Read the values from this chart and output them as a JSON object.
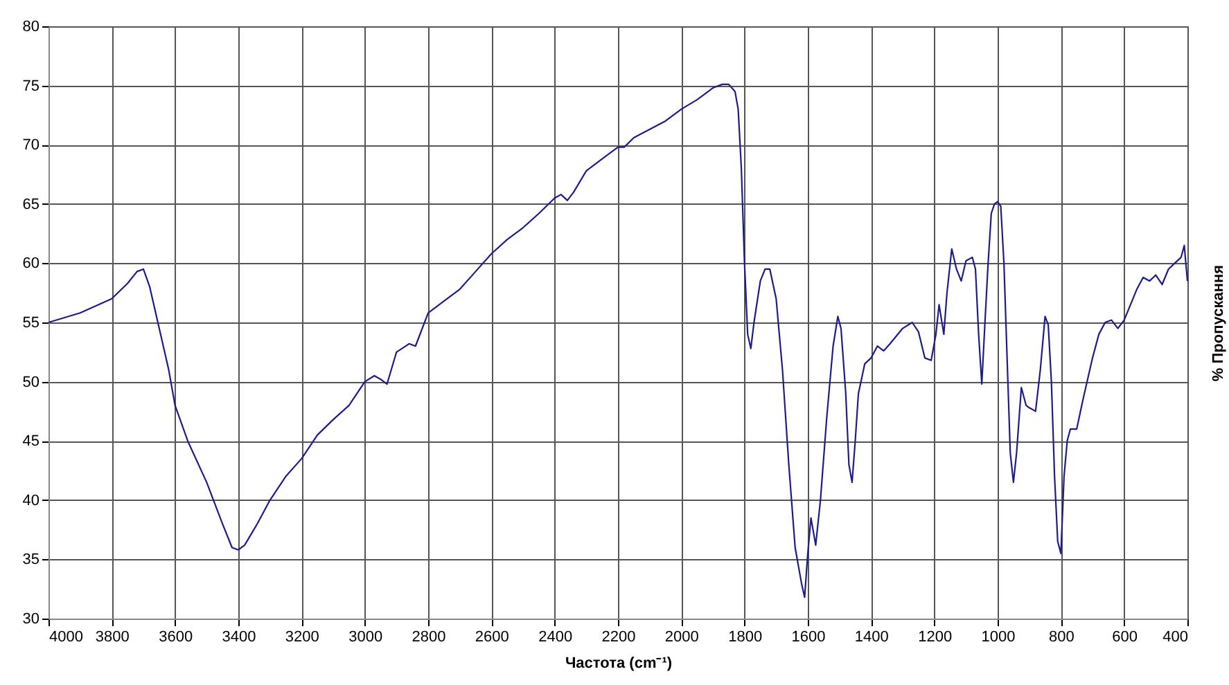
{
  "chart_data": {
    "type": "line",
    "xlabel": "Частота (cm⁻¹)",
    "ylabel": "% Пропускання",
    "x": [
      4000,
      3900,
      3800,
      3750,
      3720,
      3700,
      3680,
      3650,
      3620,
      3600,
      3560,
      3500,
      3450,
      3420,
      3400,
      3380,
      3340,
      3300,
      3250,
      3200,
      3150,
      3100,
      3050,
      3000,
      2970,
      2950,
      2930,
      2900,
      2860,
      2840,
      2800,
      2750,
      2700,
      2650,
      2600,
      2550,
      2500,
      2450,
      2400,
      2380,
      2360,
      2340,
      2300,
      2250,
      2200,
      2180,
      2150,
      2100,
      2050,
      2000,
      1950,
      1900,
      1870,
      1850,
      1830,
      1820,
      1810,
      1800,
      1790,
      1780,
      1770,
      1750,
      1735,
      1720,
      1700,
      1680,
      1660,
      1640,
      1620,
      1610,
      1600,
      1590,
      1575,
      1560,
      1540,
      1520,
      1505,
      1495,
      1480,
      1470,
      1460,
      1450,
      1440,
      1420,
      1400,
      1380,
      1360,
      1340,
      1300,
      1270,
      1250,
      1230,
      1210,
      1195,
      1185,
      1170,
      1160,
      1145,
      1130,
      1115,
      1100,
      1080,
      1070,
      1060,
      1050,
      1040,
      1030,
      1020,
      1010,
      1000,
      990,
      980,
      970,
      960,
      950,
      940,
      925,
      910,
      900,
      880,
      865,
      850,
      840,
      830,
      820,
      810,
      800,
      790,
      780,
      770,
      750,
      730,
      700,
      680,
      660,
      640,
      620,
      600,
      580,
      560,
      540,
      520,
      500,
      480,
      460,
      440,
      420,
      410,
      405,
      400
    ],
    "series": [
      {
        "color": "#1c1c8c",
        "values": [
          55.0,
          55.8,
          57.0,
          58.3,
          59.3,
          59.5,
          58.0,
          54.5,
          51,
          48,
          45,
          41.5,
          38,
          36,
          35.8,
          36.2,
          38,
          40,
          42,
          43.5,
          45.5,
          46.8,
          48,
          50,
          50.5,
          50.2,
          49.8,
          52.5,
          53.2,
          53.0,
          55.8,
          56.8,
          57.8,
          59.3,
          60.8,
          62.0,
          63.0,
          64.2,
          65.5,
          65.8,
          65.3,
          66.0,
          67.8,
          68.8,
          69.8,
          69.8,
          70.6,
          71.3,
          72.0,
          73.0,
          73.8,
          74.8,
          75.1,
          75.1,
          74.5,
          73,
          68,
          60,
          54,
          52.8,
          55,
          58.5,
          59.5,
          59.5,
          57,
          51,
          43,
          36,
          33,
          31.8,
          35.5,
          38.5,
          36.2,
          40,
          47,
          53,
          55.5,
          54.5,
          49,
          43,
          41.5,
          45,
          49,
          51.5,
          52,
          53,
          52.6,
          53.2,
          54.5,
          55,
          54.2,
          52,
          51.8,
          54,
          56.5,
          54,
          57.5,
          61.2,
          59.5,
          58.5,
          60.2,
          60.5,
          59.5,
          54,
          49.8,
          55,
          60,
          64.2,
          65,
          65.2,
          64.8,
          60,
          52,
          44,
          41.5,
          44,
          49.5,
          48,
          47.8,
          47.5,
          51,
          55.5,
          54.8,
          50,
          42,
          36.5,
          35.5,
          42,
          45,
          46,
          46,
          48.5,
          52,
          54,
          55,
          55.2,
          54.5,
          55.2,
          56.5,
          57.8,
          58.8,
          58.5,
          59,
          58.2,
          59.5,
          60,
          60.5,
          61.5,
          60,
          58.5
        ]
      }
    ],
    "xlim": [
      4000,
      400
    ],
    "ylim": [
      30,
      80
    ],
    "xticks": [
      4000,
      3800,
      3600,
      3400,
      3200,
      3000,
      2800,
      2600,
      2400,
      2200,
      2000,
      1800,
      1600,
      1400,
      1200,
      1000,
      800,
      600,
      400
    ],
    "yticks": [
      30,
      35,
      40,
      45,
      50,
      55,
      60,
      65,
      70,
      75,
      80
    ],
    "grid": true,
    "marker": "none",
    "line_style": "solid"
  }
}
